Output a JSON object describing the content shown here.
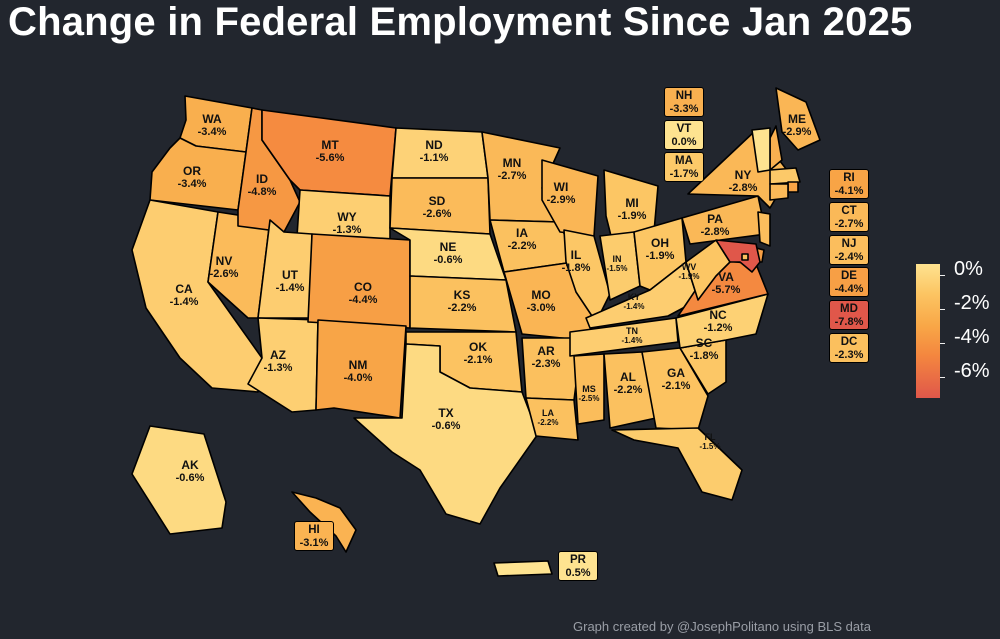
{
  "title": "Change in Federal Employment Since Jan 2025",
  "credit": "Graph created by @JosephPolitano using BLS data",
  "legend": {
    "labels": [
      "0%",
      "-2%",
      "-4%",
      "-6%"
    ],
    "min": -7.8,
    "max": 0.0
  },
  "colors": {
    "background": "#22262e",
    "zero": "#fee390",
    "low": "#fcc563",
    "mid": "#f8a747",
    "high": "#f4873f",
    "max": "#e0574a"
  },
  "states": {
    "WA": "-3.4%",
    "OR": "-3.4%",
    "CA": "-1.4%",
    "NV": "-2.6%",
    "ID": "-4.8%",
    "MT": "-5.6%",
    "WY": "-1.3%",
    "UT": "-1.4%",
    "AZ": "-1.3%",
    "CO": "-4.4%",
    "NM": "-4.0%",
    "ND": "-1.1%",
    "SD": "-2.6%",
    "NE": "-0.6%",
    "KS": "-2.2%",
    "OK": "-2.1%",
    "TX": "-0.6%",
    "MN": "-2.7%",
    "IA": "-2.2%",
    "MO": "-3.0%",
    "AR": "-2.3%",
    "LA": "-2.2%",
    "WI": "-2.9%",
    "IL": "-1.8%",
    "MI": "-1.9%",
    "IN": "-1.5%",
    "OH": "-1.9%",
    "KY": "-1.4%",
    "TN": "-1.4%",
    "MS": "-2.5%",
    "AL": "-2.2%",
    "GA": "-2.1%",
    "FL": "-1.5%",
    "SC": "-1.8%",
    "NC": "-1.2%",
    "VA": "-5.7%",
    "WV": "-1.9%",
    "PA": "-2.8%",
    "NY": "-2.8%",
    "ME": "-2.9%",
    "AK": "-0.6%",
    "HI": "-3.1%",
    "PR": "0.5%",
    "NH": "-3.3%",
    "VT": "0.0%",
    "MA": "-1.7%",
    "RI": "-4.1%",
    "CT": "-2.7%",
    "NJ": "-2.4%",
    "DE": "-4.4%",
    "MD": "-7.8%",
    "DC": "-2.3%"
  },
  "callout_states": [
    "NH",
    "VT",
    "MA",
    "RI",
    "CT",
    "NJ",
    "DE",
    "MD",
    "DC",
    "PR",
    "HI"
  ]
}
